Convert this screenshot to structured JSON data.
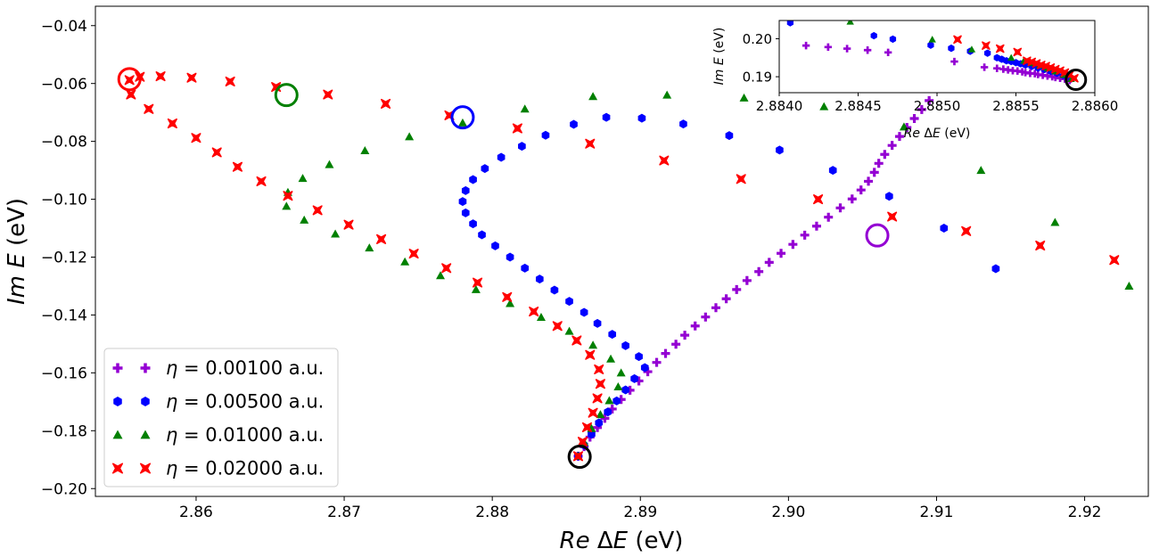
{
  "chart_data": [
    {
      "type": "scatter",
      "title": "",
      "xlabel": "Re ΔE (eV)",
      "ylabel": "Im E (eV)",
      "xlim": [
        2.8532,
        2.9243
      ],
      "ylim": [
        -0.2027,
        -0.0333
      ],
      "xticks": [
        "2.86",
        "2.87",
        "2.88",
        "2.89",
        "2.90",
        "2.91",
        "2.92"
      ],
      "yticks": [
        "−0.04",
        "−0.06",
        "−0.08",
        "−0.10",
        "−0.12",
        "−0.14",
        "−0.16",
        "−0.18",
        "−0.20"
      ],
      "legend_position": "lower-left",
      "series": [
        {
          "name": "η = 0.00100 a.u.",
          "marker": "plus",
          "color": "#9400d3",
          "x": [
            2.8858,
            2.8862,
            2.8866,
            2.8871,
            2.8876,
            2.8881,
            2.8887,
            2.8893,
            2.8899,
            2.8905,
            2.8911,
            2.8917,
            2.8924,
            2.893,
            2.8937,
            2.8944,
            2.8951,
            2.8958,
            2.8965,
            2.8972,
            2.898,
            2.8987,
            2.8995,
            2.9003,
            2.9011,
            2.9019,
            2.9027,
            2.9035,
            2.9043,
            2.9049,
            2.9054,
            2.9058,
            2.9061,
            2.9065,
            2.907,
            2.9075,
            2.908,
            2.9085,
            2.909,
            2.9095
          ],
          "y": [
            -0.1888,
            -0.1855,
            -0.1822,
            -0.1789,
            -0.1757,
            -0.1725,
            -0.1692,
            -0.166,
            -0.1628,
            -0.1596,
            -0.1564,
            -0.1533,
            -0.1501,
            -0.147,
            -0.1438,
            -0.1407,
            -0.1375,
            -0.1344,
            -0.1312,
            -0.1281,
            -0.125,
            -0.1218,
            -0.1187,
            -0.1156,
            -0.1124,
            -0.1093,
            -0.1062,
            -0.103,
            -0.0999,
            -0.0968,
            -0.0938,
            -0.0907,
            -0.0876,
            -0.0845,
            -0.0814,
            -0.0783,
            -0.0752,
            -0.0721,
            -0.069,
            -0.0659
          ]
        },
        {
          "name": "η = 0.00500 a.u.",
          "marker": "hexagon",
          "color": "#0000ff",
          "x": [
            2.8858,
            2.8862,
            2.8867,
            2.8872,
            2.8878,
            2.8884,
            2.889,
            2.8896,
            2.8903,
            2.8899,
            2.889,
            2.8881,
            2.8871,
            2.8862,
            2.8852,
            2.8842,
            2.8832,
            2.8822,
            2.8812,
            2.8802,
            2.8793,
            2.8787,
            2.8782,
            2.878,
            2.8782,
            2.8787,
            2.8795,
            2.8806,
            2.882,
            2.8836,
            2.8855,
            2.8877,
            2.8901,
            2.8929,
            2.896,
            2.8994,
            2.903,
            2.9068,
            2.9105,
            2.914
          ],
          "y": [
            -0.1888,
            -0.185,
            -0.1812,
            -0.1773,
            -0.1735,
            -0.1697,
            -0.1659,
            -0.162,
            -0.1582,
            -0.1544,
            -0.1506,
            -0.1467,
            -0.1429,
            -0.1391,
            -0.1353,
            -0.1314,
            -0.1276,
            -0.1238,
            -0.12,
            -0.1161,
            -0.1123,
            -0.1085,
            -0.1047,
            -0.1008,
            -0.097,
            -0.0932,
            -0.0894,
            -0.0855,
            -0.0817,
            -0.0779,
            -0.0741,
            -0.0717,
            -0.072,
            -0.074,
            -0.078,
            -0.083,
            -0.09,
            -0.099,
            -0.11,
            -0.124
          ]
        },
        {
          "name": "η = 0.01000 a.u.",
          "marker": "triangle",
          "color": "#008000",
          "x": [
            2.8858,
            2.8862,
            2.8867,
            2.8873,
            2.8879,
            2.8885,
            2.8887,
            2.888,
            2.8868,
            2.8852,
            2.8833,
            2.8812,
            2.8789,
            2.8765,
            2.8741,
            2.8717,
            2.8694,
            2.8673,
            2.8661,
            2.8662,
            2.8672,
            2.869,
            2.8714,
            2.8744,
            2.878,
            2.8822,
            2.8868,
            2.8918,
            2.897,
            2.9024,
            2.9078,
            2.913,
            2.918,
            2.923
          ],
          "y": [
            -0.1888,
            -0.184,
            -0.1792,
            -0.1744,
            -0.1696,
            -0.1648,
            -0.16,
            -0.1552,
            -0.1504,
            -0.1456,
            -0.1408,
            -0.136,
            -0.1312,
            -0.1264,
            -0.1216,
            -0.1168,
            -0.112,
            -0.1072,
            -0.1024,
            -0.0976,
            -0.0928,
            -0.088,
            -0.0832,
            -0.0784,
            -0.0736,
            -0.0688,
            -0.0645,
            -0.064,
            -0.065,
            -0.068,
            -0.075,
            -0.09,
            -0.108,
            -0.13
          ]
        },
        {
          "name": "η = 0.02000 a.u.",
          "marker": "x-square",
          "color": "#ff0000",
          "x": [
            2.8858,
            2.8861,
            2.8864,
            2.8868,
            2.8871,
            2.8873,
            2.8872,
            2.8866,
            2.8857,
            2.8844,
            2.8828,
            2.881,
            2.879,
            2.8769,
            2.8747,
            2.8725,
            2.8703,
            2.8682,
            2.8662,
            2.8644,
            2.8628,
            2.8614,
            2.86,
            2.8584,
            2.8568,
            2.8556,
            2.8555,
            2.8562,
            2.8576,
            2.8597,
            2.8623,
            2.8654,
            2.8689,
            2.8728,
            2.8771,
            2.8817,
            2.8866,
            2.8916,
            2.8968,
            2.902,
            2.907,
            2.912,
            2.917,
            2.922
          ],
          "y": [
            -0.1888,
            -0.1838,
            -0.1788,
            -0.1738,
            -0.1688,
            -0.1638,
            -0.1588,
            -0.1538,
            -0.1488,
            -0.1438,
            -0.1388,
            -0.1338,
            -0.1288,
            -0.1238,
            -0.1188,
            -0.1138,
            -0.1088,
            -0.1038,
            -0.0988,
            -0.0938,
            -0.0888,
            -0.0838,
            -0.0788,
            -0.0738,
            -0.0688,
            -0.0638,
            -0.0588,
            -0.0577,
            -0.0575,
            -0.058,
            -0.0593,
            -0.0612,
            -0.0638,
            -0.067,
            -0.071,
            -0.0755,
            -0.0808,
            -0.0866,
            -0.093,
            -0.1,
            -0.106,
            -0.111,
            -0.116,
            -0.121
          ]
        }
      ],
      "markers_circled": [
        {
          "x": 2.8859,
          "y": -0.189,
          "color": "#000000"
        },
        {
          "x": 2.906,
          "y": -0.1125,
          "color": "#9400d3"
        },
        {
          "x": 2.878,
          "y": -0.0717,
          "color": "#0000ff"
        },
        {
          "x": 2.8661,
          "y": -0.064,
          "color": "#008000"
        },
        {
          "x": 2.8555,
          "y": -0.0585,
          "color": "#ff0000"
        }
      ]
    },
    {
      "type": "scatter",
      "title": "",
      "xlabel": "Re ΔE (eV)",
      "ylabel": "Im E (eV)",
      "xlim": [
        2.884,
        2.886
      ],
      "ylim": [
        0.1858,
        0.2048
      ],
      "xticks": [
        "2.8840",
        "2.8845",
        "2.8850",
        "2.8855",
        "2.8860"
      ],
      "yticks": [
        "0.20",
        "0.19"
      ],
      "series": [
        {
          "name": "η = 0.00100 a.u.",
          "marker": "plus",
          "color": "#9400d3",
          "x": [
            2.88417,
            2.88431,
            2.88443,
            2.88456,
            2.88469,
            2.88511,
            2.8853,
            2.88538,
            2.88542,
            2.88545,
            2.88548,
            2.88551,
            2.88554,
            2.88556,
            2.88559,
            2.88562,
            2.88564,
            2.88567,
            2.8857,
            2.88573,
            2.88575,
            2.88578,
            2.88581,
            2.88584
          ],
          "y": [
            0.1982,
            0.1978,
            0.1974,
            0.197,
            0.1964,
            0.194,
            0.1925,
            0.1922,
            0.192,
            0.1918,
            0.1916,
            0.1915,
            0.1913,
            0.1911,
            0.1909,
            0.1908,
            0.1906,
            0.1904,
            0.1902,
            0.19,
            0.1898,
            0.1896,
            0.1894,
            0.189
          ]
        },
        {
          "name": "η = 0.00500 a.u.",
          "marker": "hexagon",
          "color": "#0000ff",
          "x": [
            2.88407,
            2.8846,
            2.88472,
            2.88496,
            2.88509,
            2.88521,
            2.88532,
            2.88538,
            2.88541,
            2.88544,
            2.88547,
            2.8855,
            2.88553,
            2.88556,
            2.8856,
            2.88564,
            2.88568,
            2.88572,
            2.88576,
            2.8858,
            2.88585
          ],
          "y": [
            0.2042,
            0.2008,
            0.1999,
            0.1983,
            0.1975,
            0.1967,
            0.1962,
            0.195,
            0.1946,
            0.1942,
            0.194,
            0.1937,
            0.1934,
            0.1931,
            0.1927,
            0.1923,
            0.1919,
            0.1914,
            0.1909,
            0.1903,
            0.1894
          ]
        },
        {
          "name": "η = 0.01000 a.u.",
          "marker": "triangle",
          "color": "#008000",
          "x": [
            2.88445,
            2.88497,
            2.88522,
            2.88547,
            2.88555,
            2.8856,
            2.88565,
            2.8857,
            2.88575,
            2.8858,
            2.88585
          ],
          "y": [
            0.2045,
            0.1998,
            0.1972,
            0.195,
            0.1942,
            0.1936,
            0.193,
            0.1922,
            0.1914,
            0.1905,
            0.1894
          ]
        },
        {
          "name": "η = 0.02000 a.u.",
          "marker": "x-square",
          "color": "#ff0000",
          "x": [
            2.88513,
            2.88531,
            2.8854,
            2.88551,
            2.88557,
            2.8856,
            2.88563,
            2.88566,
            2.88569,
            2.88572,
            2.88575,
            2.88578,
            2.88581,
            2.88584,
            2.88587
          ],
          "y": [
            0.1998,
            0.1982,
            0.1974,
            0.1965,
            0.1942,
            0.1939,
            0.1935,
            0.1931,
            0.1928,
            0.1924,
            0.192,
            0.1916,
            0.1911,
            0.1905,
            0.1896
          ]
        }
      ],
      "markers_circled": [
        {
          "x": 2.88588,
          "y": 0.1892,
          "color": "#000000"
        }
      ]
    }
  ]
}
